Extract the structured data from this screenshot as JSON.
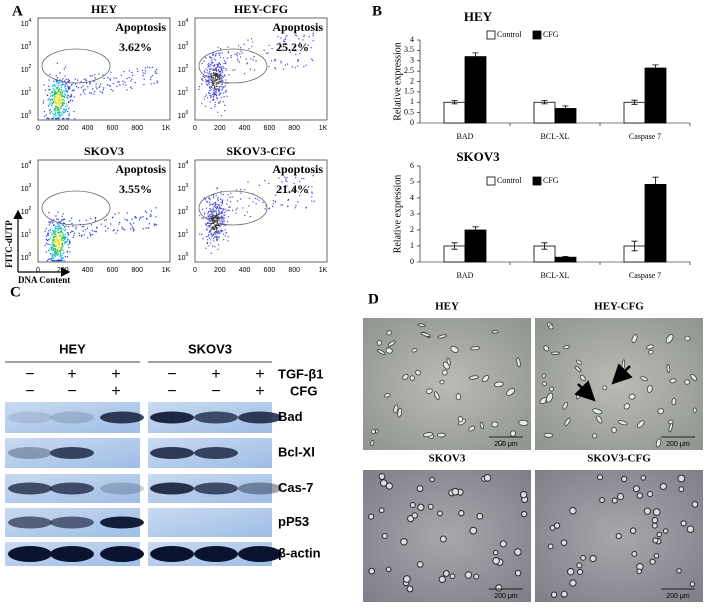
{
  "panel_labels": [
    "A",
    "B",
    "C",
    "D"
  ],
  "flow": {
    "plots": [
      {
        "title": "HEY",
        "gate_label": "Apoptosis",
        "percent": "3.62%"
      },
      {
        "title": "HEY-CFG",
        "gate_label": "Apoptosis",
        "percent": "25.2%"
      },
      {
        "title": "SKOV3",
        "gate_label": "Apoptosis",
        "percent": "3.55%"
      },
      {
        "title": "SKOV3-CFG",
        "gate_label": "Apoptosis",
        "percent": "21.4%"
      }
    ],
    "x_tick_labels": [
      "0",
      "200",
      "400",
      "600",
      "800",
      "1K"
    ],
    "y_tick_base": "10",
    "y_tick_exponents": [
      "0",
      "1",
      "2",
      "3",
      "4"
    ],
    "y_label": "FITC-dUTP",
    "x_label": "DNA Content"
  },
  "chart_data": [
    {
      "type": "bar",
      "title": "HEY",
      "y_label": "Relative expression",
      "categories": [
        "BAD",
        "BCL-XL",
        "Caspase 7"
      ],
      "series": [
        {
          "name": "Control",
          "color": "#ffffff",
          "values": [
            1,
            1,
            1
          ],
          "errors": [
            0.08,
            0.08,
            0.1
          ]
        },
        {
          "name": "CFG",
          "color": "#000000",
          "values": [
            3.2,
            0.7,
            2.65
          ],
          "errors": [
            0.18,
            0.12,
            0.15
          ]
        }
      ],
      "ylim": [
        0,
        4
      ],
      "yticks": [
        0,
        0.5,
        1,
        1.5,
        2,
        2.5,
        3,
        3.5,
        4
      ]
    },
    {
      "type": "bar",
      "title": "SKOV3",
      "y_label": "Relative expression",
      "categories": [
        "BAD",
        "BCL-XL",
        "Caspase 7"
      ],
      "series": [
        {
          "name": "Control",
          "color": "#ffffff",
          "values": [
            1,
            1,
            1
          ],
          "errors": [
            0.2,
            0.2,
            0.3
          ]
        },
        {
          "name": "CFG",
          "color": "#000000",
          "values": [
            2,
            0.3,
            4.85
          ],
          "errors": [
            0.2,
            0.05,
            0.45
          ]
        }
      ],
      "ylim": [
        0,
        6
      ],
      "yticks": [
        0,
        1,
        2,
        3,
        4,
        5,
        6
      ]
    }
  ],
  "western_blot": {
    "groups": [
      "HEY",
      "SKOV3"
    ],
    "treatments": [
      {
        "label": "TGF-β1",
        "signs": [
          "−",
          "+",
          "+",
          "−",
          "+",
          "+"
        ]
      },
      {
        "label": "CFG",
        "signs": [
          "−",
          "−",
          "+",
          "−",
          "−",
          "+"
        ]
      }
    ],
    "proteins": [
      "Bad",
      "Bcl-Xl",
      "Cas-7",
      "pP53",
      "β-actin"
    ]
  },
  "micrographs": [
    {
      "title": "HEY",
      "scale_bar": "200 μm"
    },
    {
      "title": "HEY-CFG",
      "scale_bar": "200 μm"
    },
    {
      "title": "SKOV3",
      "scale_bar": "200 μm"
    },
    {
      "title": "SKOV3-CFG",
      "scale_bar": "200 μm"
    }
  ]
}
